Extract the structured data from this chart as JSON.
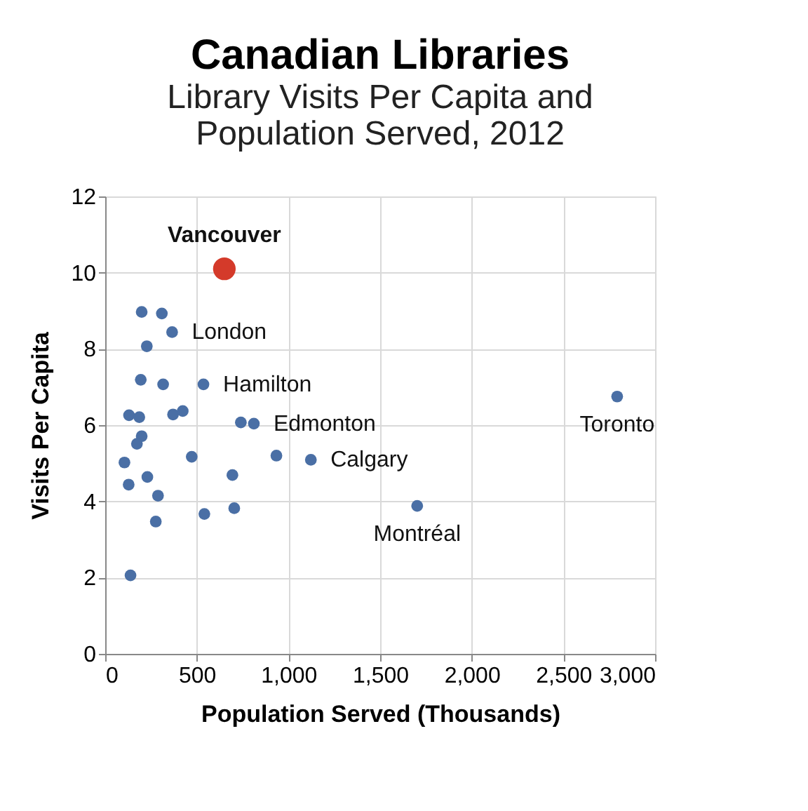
{
  "chart_data": {
    "type": "scatter",
    "title": "Canadian Libraries",
    "subtitle": "Library Visits Per Capita and\nPopulation Served, 2012",
    "xlabel": "Population Served (Thousands)",
    "ylabel": "Visits Per Capita",
    "xlim": [
      0,
      3000
    ],
    "xticks": [
      0,
      {
        "value": 500,
        "label": "500"
      },
      {
        "value": 1000,
        "label": "1,000"
      },
      {
        "value": 1500,
        "label": "1,500"
      },
      {
        "value": 2000,
        "label": "2,000"
      },
      {
        "value": 2500,
        "label": "2,500"
      },
      {
        "value": 3000,
        "label": "3,000"
      }
    ],
    "ylim": [
      0,
      12
    ],
    "yticks": [
      0,
      2,
      4,
      6,
      8,
      10,
      12
    ],
    "grid": true,
    "marker": "circle",
    "series": [
      {
        "color": "#4a6fa5",
        "x": [
          199,
          309,
          365,
          227,
          194,
          316,
          536,
          130,
          186,
          370,
          423,
          740,
          811,
          199,
          173,
          105,
          472,
          934,
          1122,
          128,
          230,
          694,
          288,
          276,
          541,
          704,
          138,
          1702,
          2793
        ],
        "values": [
          8.97,
          8.93,
          8.44,
          8.07,
          7.19,
          7.07,
          7.07,
          6.26,
          6.21,
          6.28,
          6.37,
          6.07,
          6.04,
          5.71,
          5.51,
          5.02,
          5.17,
          5.2,
          5.09,
          4.44,
          4.64,
          4.69,
          4.15,
          3.47,
          3.67,
          3.82,
          2.06,
          3.88,
          6.75
        ]
      },
      {
        "color": "#d43a2a",
        "x": [
          650
        ],
        "values": [
          10.1
        ]
      }
    ],
    "annotations": [
      {
        "text": "Vancouver",
        "x": 650,
        "y": 10.1
      },
      {
        "text": "London",
        "x": 365,
        "y": 8.44
      },
      {
        "text": "Hamilton",
        "x": 536,
        "y": 7.07
      },
      {
        "text": "Edmonton",
        "x": 811,
        "y": 6.04
      },
      {
        "text": "Calgary",
        "x": 1122,
        "y": 5.09
      },
      {
        "text": "Montréal",
        "x": 1702,
        "y": 3.88
      },
      {
        "text": "Toronto",
        "x": 2793,
        "y": 6.75
      }
    ]
  }
}
